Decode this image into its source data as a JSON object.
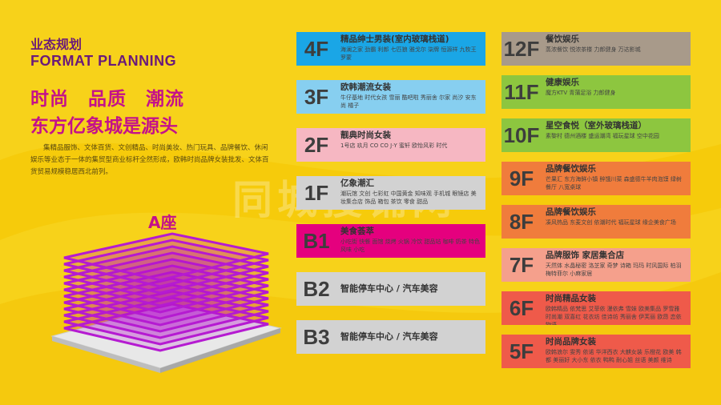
{
  "header": {
    "title_cn": "业态规划",
    "title_en": "FORMAT PLANNING",
    "slogan_line1": "时尚　品质　潮流",
    "slogan_line2": "东方亿象城是源头",
    "description": "集精品服饰、文体百货、文创精品、时尚美妆、热门玩具、品牌餐饮、休闲娱乐等业态于一体的集贸型商业标杆全然形成，欧韩时尚品牌女装批发、文体百货贸易规模稳居西北前列。"
  },
  "tower": {
    "label": "A座"
  },
  "watermark": "同城搜铺网",
  "colors": {
    "background": "#f7d21a",
    "accent_magenta": "#c4118a",
    "title_purple": "#6a1a7a"
  },
  "floors_left": [
    {
      "label": "4F",
      "name": "精品绅士男装(室内玻璃栈道)",
      "shops": "海澜之家 劲霸 利郎 七匹狼 雅戈尔 柒牌 恒源祥 九牧王 罗蒙",
      "label_bg": "#1aa6e6",
      "body_bg": "#1aa6e6"
    },
    {
      "label": "3F",
      "name": "欧韩潮流女装",
      "shops": "牛仔基地 时代女孩 雪丽 酷吧啦 秀丽舍 尔家 尚汐 安东尚 橘子",
      "label_bg": "#87cff0",
      "body_bg": "#87cff0"
    },
    {
      "label": "2F",
      "name": "靓典时尚女装",
      "shops": "1号店 玖月 CO CO J·Y 蜜轩 欧怡风彩 时代",
      "label_bg": "#f6b7c2",
      "body_bg": "#f6b7c2"
    },
    {
      "label": "1F",
      "name": "亿象潮汇",
      "shops": "潮玩馆 文创 七彩虹 中国黄金 知味观 手机城 眼镜店 美妆集合店 饰品 箱包 茶饮 零食 甜品",
      "label_bg": "#d2d2d2",
      "body_bg": "#d2d2d2"
    },
    {
      "label": "B1",
      "name": "美食荟萃",
      "shops": "小吃街 快餐 面馆 烧烤 火锅 冷饮 甜品站 咖啡 奶茶 特色风味 小吃",
      "label_bg": "#e5007e",
      "body_bg": "#e5007e"
    },
    {
      "label": "B2",
      "name": "智能停车中心 / 汽车美容",
      "shops": "",
      "label_bg": "#d2d2d2",
      "body_bg": "#d2d2d2"
    },
    {
      "label": "B3",
      "name": "智能停车中心 / 汽车美容",
      "shops": "",
      "label_bg": "#d2d2d2",
      "body_bg": "#d2d2d2"
    }
  ],
  "floors_right": [
    {
      "label": "12F",
      "name": "餐饮娱乐",
      "shops": "蒸浓餐饮 悦浓茶楼 力郎健身 万达影城",
      "label_bg": "#a89a8a",
      "body_bg": "#a89a8a"
    },
    {
      "label": "11F",
      "name": "健康娱乐",
      "shops": "魔方KTV 青蒲足浴 力郎健身",
      "label_bg": "#8dc63f",
      "body_bg": "#8dc63f"
    },
    {
      "label": "10F",
      "name": "星空食悦（室外玻璃栈道）",
      "shops": "素黎村 德州酒楼 盛运潮湾 福玩星球 空中花园",
      "label_bg": "#8dc63f",
      "body_bg": "#8dc63f"
    },
    {
      "label": "9F",
      "name": "品牌餐饮娱乐",
      "shops": "芒果汇 东方海鲜小镇 醉饿川菜 森盛德牛羊肉泡馍 绿树餐厅 八宽桌球",
      "label_bg": "#f07c3c",
      "body_bg": "#f07c3c"
    },
    {
      "label": "8F",
      "name": "品牌餐饮娱乐",
      "shops": "凑风热品 东麦文创 依潮时代 福玩星球 缘企美食广场",
      "label_bg": "#f07c3c",
      "body_bg": "#f07c3c"
    },
    {
      "label": "7F",
      "name": "品牌服饰 家居集合店",
      "shops": "天然体 水晶秘密 洛芝家 奇梦 诗箱 玛玛 时风国际 柏羽 梅特菲尔 小麻家居",
      "label_bg": "#f5a08c",
      "body_bg": "#f5a08c"
    },
    {
      "label": "6F",
      "name": "时尚精品女装",
      "shops": "欧韩精品 依梵思 艾菲依 漫依弗 雪妹 欧美集品 罗雪雅 时尚潮 双喜红 花衣坊 佳诗坊 秀丽舍 伊芙丽 欧昂 恋依物语",
      "label_bg": "#ef5a4a",
      "body_bg": "#ef5a4a"
    },
    {
      "label": "5F",
      "name": "时尚品牌女装",
      "shops": "欧韩浪尔 雯秀 依诺 华洋西衣 大麒女装 乐橙花 欧美 韩都 美丽好 大小东 依衣 鸭鸭 耐心姐 丝语 美颜 维诗",
      "label_bg": "#ef5a4a",
      "body_bg": "#ef5a4a"
    }
  ]
}
